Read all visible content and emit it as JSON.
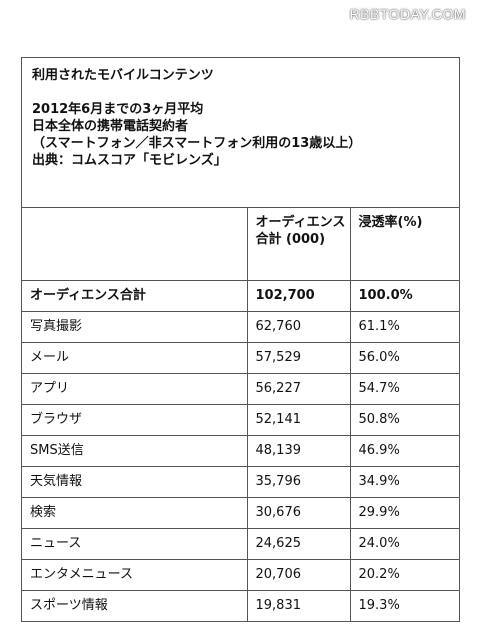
{
  "watermark": "RBBTODAY.COM",
  "header": {
    "title": "利用されたモバイルコンテンツ",
    "lines": [
      "2012年6月までの3ヶ月平均",
      "日本全体の携帯電話契約者",
      "（スマートフォン／非スマートフォン利用の13歳以上）",
      "出典：コムスコア「モビレンズ」"
    ]
  },
  "chart_data": {
    "type": "table",
    "columns": [
      "",
      "オーディエンス合計 (000)",
      "浸透率(%)"
    ],
    "rows": [
      {
        "label": "オーディエンス合計",
        "audience": "102,700",
        "penetration": "100.0%",
        "bold": true
      },
      {
        "label": "写真撮影",
        "audience": "62,760",
        "penetration": "61.1%"
      },
      {
        "label": "メール",
        "audience": "57,529",
        "penetration": "56.0%"
      },
      {
        "label": "アプリ",
        "audience": "56,227",
        "penetration": "54.7%"
      },
      {
        "label": "ブラウザ",
        "audience": "52,141",
        "penetration": "50.8%"
      },
      {
        "label": "SMS送信",
        "audience": "48,139",
        "penetration": "46.9%"
      },
      {
        "label": "天気情報",
        "audience": "35,796",
        "penetration": "34.9%"
      },
      {
        "label": "検索",
        "audience": "30,676",
        "penetration": "29.9%"
      },
      {
        "label": "ニュース",
        "audience": "24,625",
        "penetration": "24.0%"
      },
      {
        "label": "エンタメニュース",
        "audience": "20,706",
        "penetration": "20.2%"
      },
      {
        "label": "スポーツ情報",
        "audience": "19,831",
        "penetration": "19.3%"
      }
    ]
  }
}
